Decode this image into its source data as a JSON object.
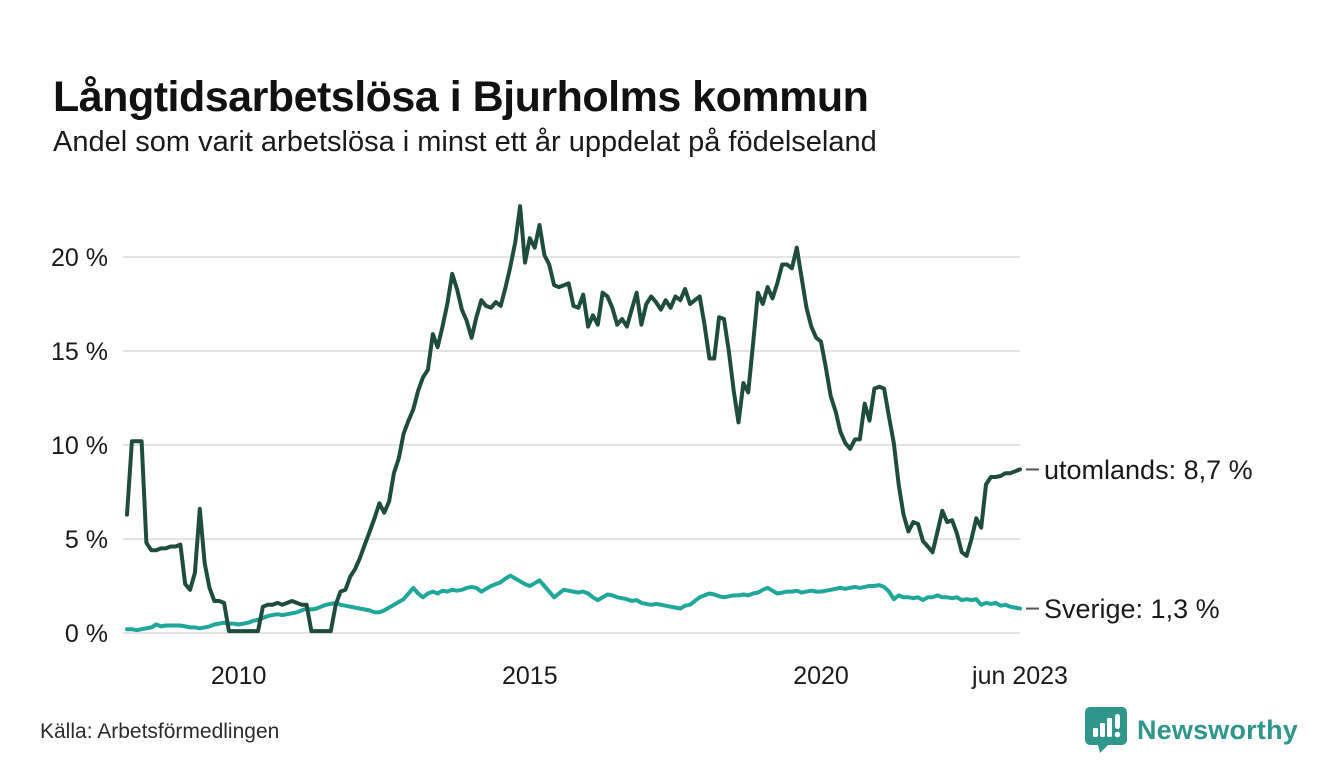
{
  "page": {
    "title": "Långtidsarbetslösa i Bjurholms kommun",
    "subtitle": "Andel som varit arbetslösa i minst ett år uppdelat på födelseland"
  },
  "source": {
    "label": "Källa: Arbetsförmedlingen"
  },
  "branding": {
    "name": "Newsworthy",
    "logo_icon": "bar-chart-speech-bubble",
    "brand_color": "#2f968b"
  },
  "chart_data": {
    "type": "line",
    "title": "Långtidsarbetslösa i Bjurholms kommun",
    "subtitle": "Andel som varit arbetslösa i minst ett år uppdelat på födelseland",
    "x_unit": "monthly",
    "x_start_year": 2008.0833,
    "x_end_year": 2023.4167,
    "ylim": [
      0,
      23
    ],
    "grid": true,
    "grid_color": "#e4e4e4",
    "text_color": "#1a1a1a",
    "y_ticks": [
      {
        "value": 0,
        "label": "0 %"
      },
      {
        "value": 5,
        "label": "5 %"
      },
      {
        "value": 10,
        "label": "10 %"
      },
      {
        "value": 15,
        "label": "15 %"
      },
      {
        "value": 20,
        "label": "20 %"
      }
    ],
    "x_ticks": [
      {
        "year": 2010,
        "label": "2010"
      },
      {
        "year": 2015,
        "label": "2015"
      },
      {
        "year": 2020,
        "label": "2020"
      },
      {
        "year": 2023.4167,
        "label": "jun 2023"
      }
    ],
    "series": [
      {
        "name": "Sverige",
        "color": "#1fa79b",
        "end_label": "Sverige: 1,3 %",
        "last_value": 1.3,
        "values": [
          0.2,
          0.2,
          0.15,
          0.2,
          0.25,
          0.3,
          0.45,
          0.35,
          0.4,
          0.4,
          0.4,
          0.4,
          0.35,
          0.3,
          0.3,
          0.25,
          0.3,
          0.35,
          0.45,
          0.5,
          0.55,
          0.5,
          0.5,
          0.45,
          0.5,
          0.55,
          0.65,
          0.7,
          0.8,
          0.9,
          0.95,
          1.0,
          0.95,
          1.0,
          1.05,
          1.1,
          1.2,
          1.3,
          1.25,
          1.3,
          1.4,
          1.5,
          1.55,
          1.6,
          1.5,
          1.45,
          1.4,
          1.35,
          1.3,
          1.25,
          1.2,
          1.1,
          1.1,
          1.2,
          1.35,
          1.5,
          1.65,
          1.8,
          2.1,
          2.4,
          2.1,
          1.9,
          2.1,
          2.2,
          2.1,
          2.25,
          2.2,
          2.3,
          2.25,
          2.3,
          2.4,
          2.45,
          2.4,
          2.2,
          2.35,
          2.5,
          2.6,
          2.7,
          2.9,
          3.05,
          2.9,
          2.75,
          2.6,
          2.5,
          2.65,
          2.8,
          2.5,
          2.2,
          1.9,
          2.1,
          2.3,
          2.25,
          2.2,
          2.15,
          2.2,
          2.1,
          1.9,
          1.75,
          1.9,
          2.05,
          2.0,
          1.9,
          1.85,
          1.8,
          1.7,
          1.75,
          1.6,
          1.55,
          1.5,
          1.55,
          1.5,
          1.45,
          1.4,
          1.35,
          1.3,
          1.45,
          1.5,
          1.7,
          1.9,
          2.0,
          2.1,
          2.05,
          1.95,
          1.9,
          1.95,
          2.0,
          2.0,
          2.05,
          2.0,
          2.1,
          2.15,
          2.3,
          2.4,
          2.25,
          2.1,
          2.15,
          2.2,
          2.2,
          2.25,
          2.15,
          2.2,
          2.25,
          2.2,
          2.2,
          2.25,
          2.3,
          2.35,
          2.4,
          2.35,
          2.4,
          2.45,
          2.4,
          2.45,
          2.5,
          2.5,
          2.55,
          2.45,
          2.2,
          1.8,
          2.0,
          1.9,
          1.9,
          1.85,
          1.9,
          1.75,
          1.9,
          1.9,
          2.0,
          1.9,
          1.9,
          1.85,
          1.9,
          1.75,
          1.8,
          1.75,
          1.8,
          1.5,
          1.6,
          1.55,
          1.6,
          1.45,
          1.5,
          1.4,
          1.35,
          1.3
        ]
      },
      {
        "name": "utomlands",
        "color": "#1e4d3e",
        "end_label": "utomlands: 8,7 %",
        "last_value": 8.7,
        "values": [
          6.3,
          10.2,
          10.2,
          10.2,
          4.8,
          4.4,
          4.4,
          4.5,
          4.5,
          4.6,
          4.6,
          4.7,
          2.6,
          2.3,
          3.2,
          6.6,
          3.7,
          2.4,
          1.7,
          1.7,
          1.6,
          0.1,
          0.1,
          0.1,
          0.1,
          0.1,
          0.1,
          0.1,
          1.4,
          1.5,
          1.5,
          1.6,
          1.5,
          1.6,
          1.7,
          1.6,
          1.5,
          1.5,
          0.1,
          0.1,
          0.1,
          0.1,
          0.1,
          1.5,
          2.2,
          2.3,
          3.0,
          3.4,
          4.0,
          4.7,
          5.4,
          6.1,
          6.9,
          6.4,
          7.0,
          8.5,
          9.3,
          10.6,
          11.3,
          11.9,
          12.9,
          13.6,
          14.0,
          15.9,
          15.2,
          16.3,
          17.5,
          19.1,
          18.3,
          17.2,
          16.6,
          15.7,
          16.8,
          17.7,
          17.4,
          17.3,
          17.6,
          17.4,
          18.4,
          19.5,
          20.8,
          22.7,
          19.7,
          21.0,
          20.5,
          21.7,
          20.1,
          19.6,
          18.5,
          18.4,
          18.5,
          18.6,
          17.4,
          17.3,
          18.0,
          16.3,
          16.9,
          16.4,
          18.1,
          17.9,
          17.3,
          16.4,
          16.7,
          16.3,
          17.2,
          18.1,
          16.4,
          17.5,
          17.9,
          17.6,
          17.2,
          17.7,
          17.3,
          17.9,
          17.7,
          18.3,
          17.5,
          17.7,
          17.9,
          16.4,
          14.6,
          14.6,
          16.8,
          16.7,
          15.0,
          12.9,
          11.2,
          13.3,
          12.8,
          15.4,
          18.1,
          17.5,
          18.4,
          17.8,
          18.6,
          19.6,
          19.6,
          19.4,
          20.5,
          18.9,
          17.3,
          16.3,
          15.7,
          15.5,
          14.1,
          12.6,
          11.8,
          10.7,
          10.1,
          9.8,
          10.3,
          10.3,
          12.2,
          11.3,
          13.0,
          13.1,
          13.0,
          11.5,
          10.1,
          7.9,
          6.3,
          5.4,
          5.9,
          5.8,
          4.9,
          4.6,
          4.3,
          5.4,
          6.5,
          5.9,
          6.0,
          5.3,
          4.3,
          4.1,
          5.0,
          6.1,
          5.6,
          7.9,
          8.3,
          8.3,
          8.35,
          8.5,
          8.5,
          8.6,
          8.7
        ]
      }
    ]
  }
}
